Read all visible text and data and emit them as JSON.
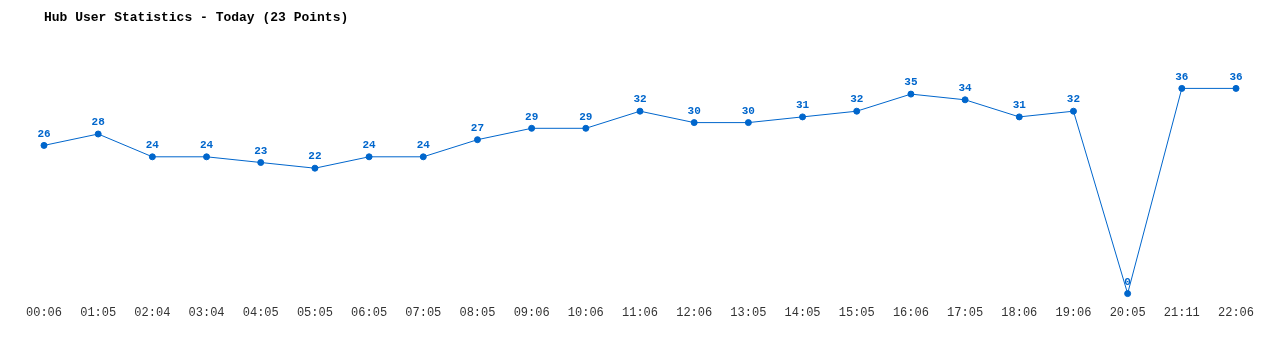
{
  "chart_data": {
    "type": "line",
    "title": "Hub User Statistics - Today (23 Points)",
    "categories": [
      "00:06",
      "01:05",
      "02:04",
      "03:04",
      "04:05",
      "05:05",
      "06:05",
      "07:05",
      "08:05",
      "09:06",
      "10:06",
      "11:06",
      "12:06",
      "13:05",
      "14:05",
      "15:05",
      "16:06",
      "17:05",
      "18:06",
      "19:06",
      "20:05",
      "21:11",
      "22:06"
    ],
    "series": [
      {
        "color": "#0066cc",
        "values": [
          26,
          28,
          24,
          24,
          23,
          22,
          24,
          24,
          27,
          29,
          29,
          32,
          30,
          30,
          31,
          32,
          35,
          34,
          31,
          32,
          0,
          36,
          36
        ]
      }
    ],
    "data_labels": true,
    "marker": "circle",
    "line_style": "solid",
    "grid": false,
    "legend": false
  }
}
